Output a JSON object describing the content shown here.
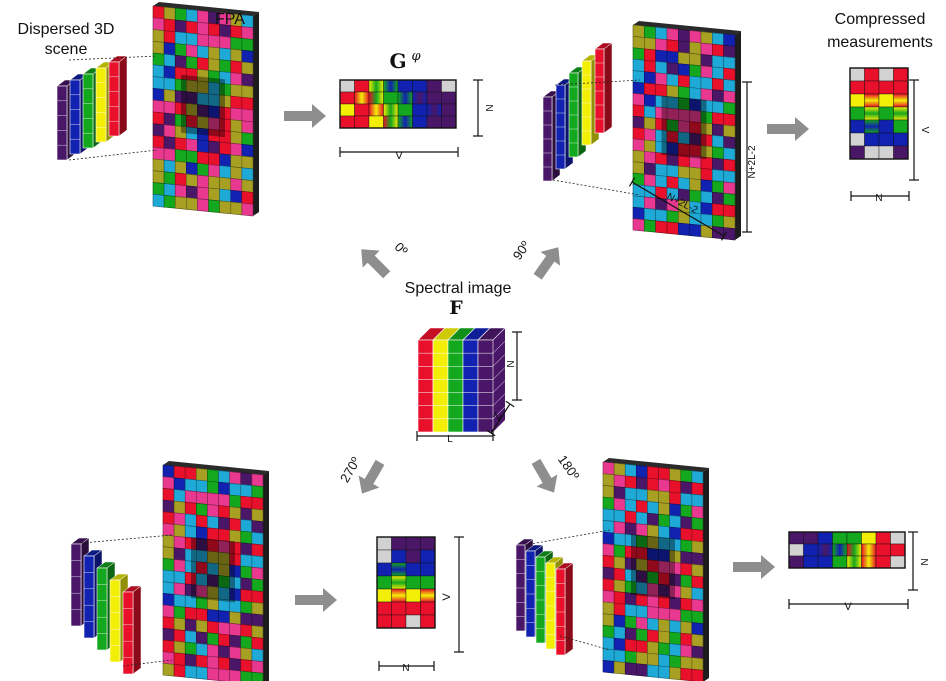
{
  "labels": {
    "dispersed_line1": "Dispersed 3D",
    "dispersed_line2": "scene",
    "fpa": "FPA",
    "compressed_line1": "Compressed",
    "compressed_line2": "measurements",
    "spectral_image": "Spectral image",
    "spectral_symbol": "F",
    "g_symbol": "G",
    "g_superscript": "φ"
  },
  "angles": {
    "a0": "0º",
    "a90": "90º",
    "a180": "180º",
    "a270": "270º"
  },
  "dimensions": {
    "N": "N",
    "V": "V",
    "L": "L",
    "Z": "Z",
    "fpa_size": "N+2L-2"
  },
  "colors": {
    "red": "#e8102a",
    "yellow": "#f2ee05",
    "green": "#13a81d",
    "blue": "#1222b0",
    "purple": "#4a1768",
    "pink": "#e8388f",
    "cyan": "#1ea9d6",
    "olive": "#a8a022",
    "gray": "#d2d2d2",
    "arrow": "#8e8e8e"
  }
}
